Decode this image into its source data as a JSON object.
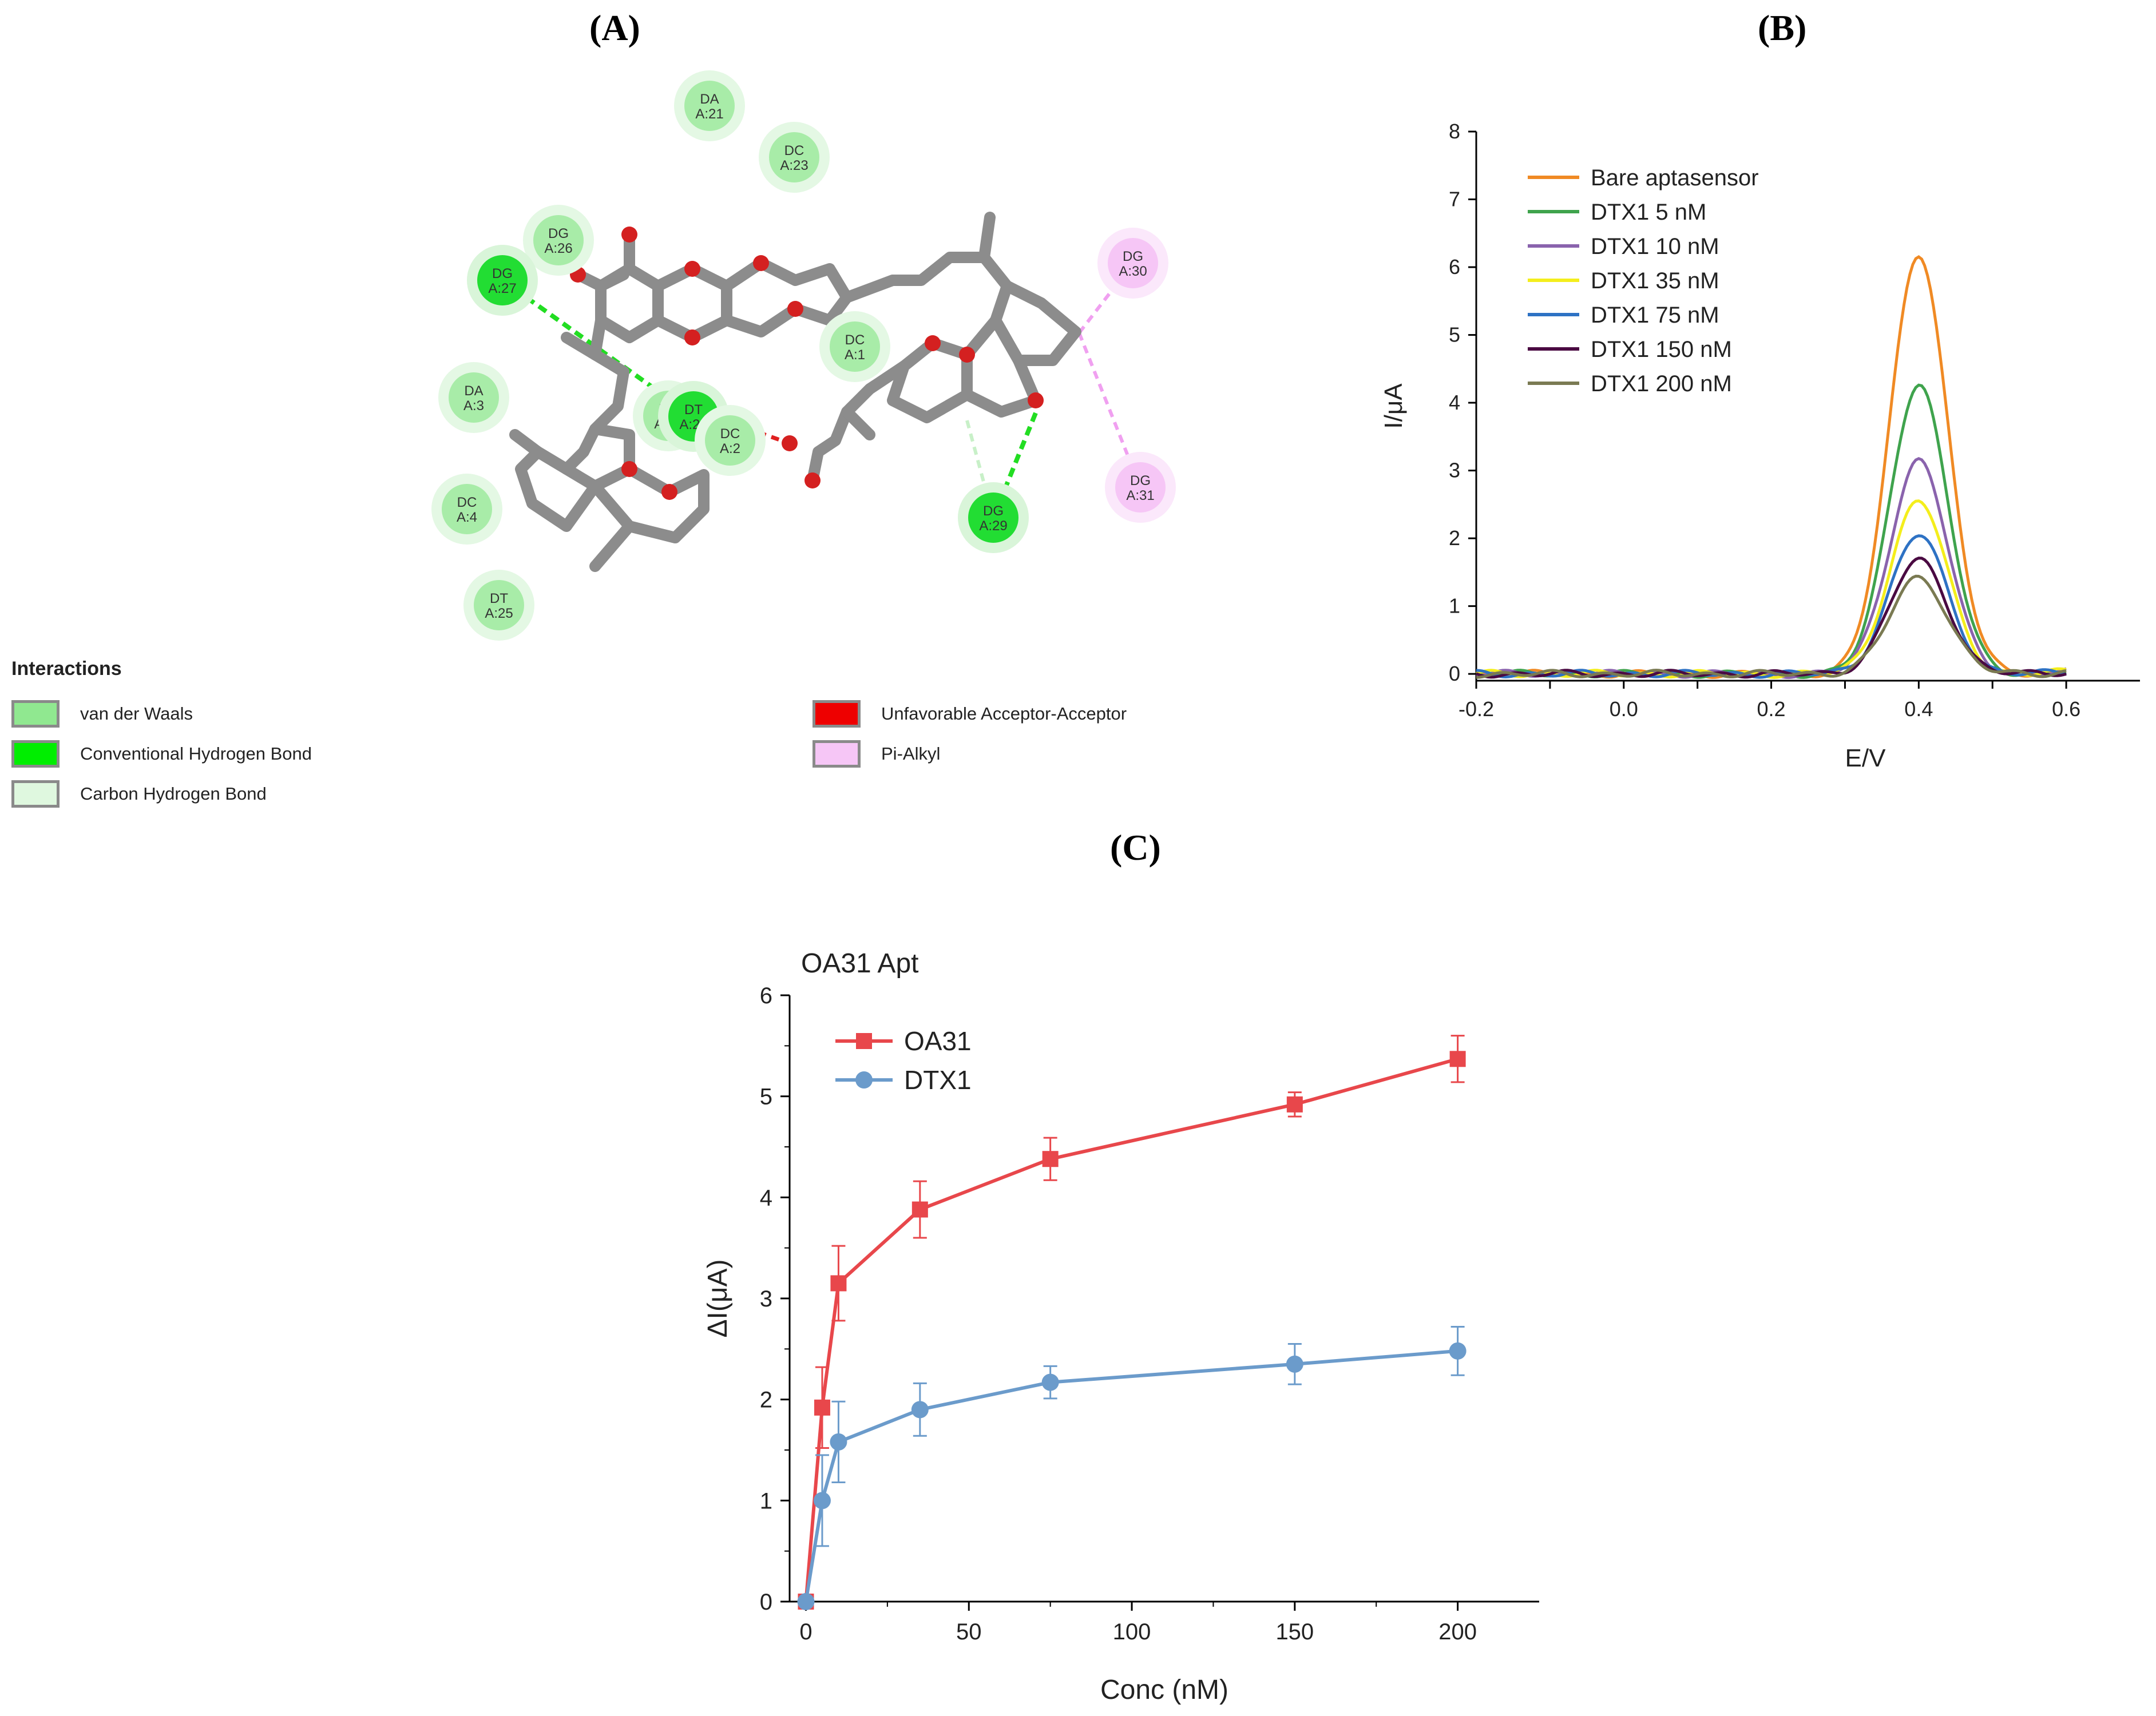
{
  "panels": {
    "a": "(A)",
    "b": "(B)",
    "c": "(C)"
  },
  "panel_a": {
    "residues": [
      {
        "name": "DA",
        "pos": "A:21"
      },
      {
        "name": "DC",
        "pos": "A:23"
      },
      {
        "name": "DG",
        "pos": "A:26"
      },
      {
        "name": "DG",
        "pos": "A:27"
      },
      {
        "name": "DA",
        "pos": "A:3"
      },
      {
        "name": "DC",
        "pos": "A:4"
      },
      {
        "name": "DT",
        "pos": "A:25"
      },
      {
        "name": "DC",
        "pos": "A:1"
      },
      {
        "name": "DA",
        "pos": "A:24"
      },
      {
        "name": "DT",
        "pos": "A:28"
      },
      {
        "name": "DC",
        "pos": "A:2"
      },
      {
        "name": "DG",
        "pos": "A:29"
      },
      {
        "name": "DG",
        "pos": "A:30"
      },
      {
        "name": "DG",
        "pos": "A:31"
      }
    ],
    "legend_title": "Interactions",
    "interactions": [
      {
        "label": "van der Waals",
        "color": "#90e890"
      },
      {
        "label": "Conventional Hydrogen Bond",
        "color": "#00ee00"
      },
      {
        "label": "Carbon Hydrogen Bond",
        "color": "#dff8df"
      },
      {
        "label": "Unfavorable Acceptor-Acceptor",
        "color": "#ee0000"
      },
      {
        "label": "Pi-Alkyl",
        "color": "#f6c6f6"
      }
    ]
  },
  "chart_data": [
    {
      "panel": "B",
      "type": "line",
      "xlabel": "E/V",
      "ylabel": "I/μA",
      "xlim": [
        -0.2,
        0.7
      ],
      "ylim": [
        -0.1,
        8
      ],
      "xticks": [
        "-0.2",
        "0.0",
        "0.2",
        "0.4",
        "0.6"
      ],
      "yticks": [
        "0",
        "1",
        "2",
        "3",
        "4",
        "5",
        "6",
        "7",
        "8"
      ],
      "legend_position": "top-left",
      "series": [
        {
          "name": "Bare aptasensor",
          "color": "#f08a24",
          "peak_x": 0.4,
          "peak_y": 6.2
        },
        {
          "name": "DTX1 5 nM",
          "color": "#3fa34d",
          "peak_x": 0.4,
          "peak_y": 4.28
        },
        {
          "name": "DTX1 10 nM",
          "color": "#8a63ad",
          "peak_x": 0.4,
          "peak_y": 3.15
        },
        {
          "name": "DTX1 35 nM",
          "color": "#f4ee1c",
          "peak_x": 0.4,
          "peak_y": 2.55
        },
        {
          "name": "DTX1 75 nM",
          "color": "#2e72c4",
          "peak_x": 0.4,
          "peak_y": 2.05
        },
        {
          "name": "DTX1 150 nM",
          "color": "#4a0a42",
          "peak_x": 0.4,
          "peak_y": 1.68
        },
        {
          "name": "DTX1 200 nM",
          "color": "#7a7a52",
          "peak_x": 0.4,
          "peak_y": 1.42
        }
      ]
    },
    {
      "panel": "C",
      "type": "line",
      "title": "OA31 Apt",
      "xlabel": "Conc (nM)",
      "ylabel": "ΔI(μA)",
      "xlim": [
        -5,
        225
      ],
      "ylim": [
        0,
        6
      ],
      "xticks": [
        "0",
        "50",
        "100",
        "150",
        "200"
      ],
      "yticks": [
        "0",
        "1",
        "2",
        "3",
        "4",
        "5",
        "6"
      ],
      "legend_position": "top-left",
      "x": [
        0,
        5,
        10,
        35,
        75,
        150,
        200
      ],
      "series": [
        {
          "name": "OA31",
          "color": "#e8474b",
          "marker": "square",
          "values": [
            0,
            1.92,
            3.15,
            3.88,
            4.38,
            4.92,
            5.37
          ],
          "errors": [
            0,
            0.4,
            0.37,
            0.28,
            0.21,
            0.12,
            0.23
          ]
        },
        {
          "name": "DTX1",
          "color": "#6b9bcb",
          "marker": "circle",
          "values": [
            0,
            1.0,
            1.58,
            1.9,
            2.17,
            2.35,
            2.48
          ],
          "errors": [
            0,
            0.45,
            0.4,
            0.26,
            0.16,
            0.2,
            0.24
          ]
        }
      ]
    }
  ]
}
